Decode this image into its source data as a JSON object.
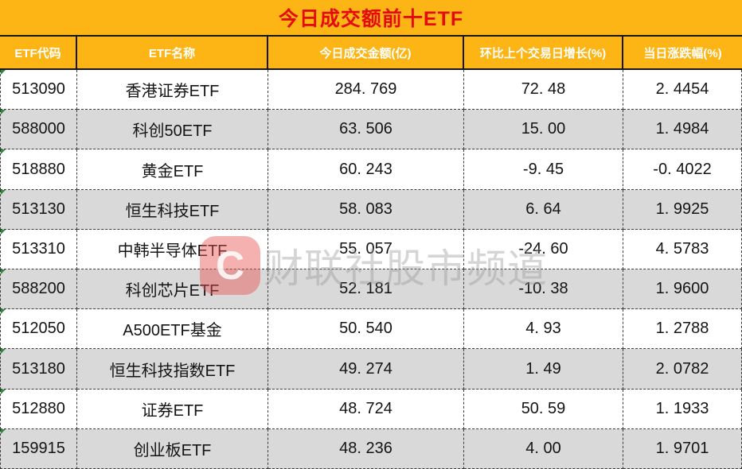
{
  "title": "今日成交额前十ETF",
  "table": {
    "headers": [
      "ETF代码",
      "ETF名称",
      "今日成交金额(亿)",
      "环比上个交易日增长(%)",
      "当日涨跌幅(%)"
    ],
    "rows": [
      {
        "code": "513090",
        "name": "香港证券ETF",
        "turnover": "284. 769",
        "change_vs_prev": "72. 48",
        "daily_change": "2. 4454"
      },
      {
        "code": "588000",
        "name": "科创50ETF",
        "turnover": "63. 506",
        "change_vs_prev": "15. 00",
        "daily_change": "1. 4984"
      },
      {
        "code": "518880",
        "name": "黄金ETF",
        "turnover": "60. 243",
        "change_vs_prev": "-9. 45",
        "daily_change": "-0. 4022"
      },
      {
        "code": "513130",
        "name": "恒生科技ETF",
        "turnover": "58. 083",
        "change_vs_prev": "6. 64",
        "daily_change": "1. 9925"
      },
      {
        "code": "513310",
        "name": "中韩半导体ETF",
        "turnover": "55. 057",
        "change_vs_prev": "-24. 60",
        "daily_change": "4. 5783"
      },
      {
        "code": "588200",
        "name": "科创芯片ETF",
        "turnover": "52. 181",
        "change_vs_prev": "-10. 38",
        "daily_change": "1. 9600"
      },
      {
        "code": "512050",
        "name": "A500ETF基金",
        "turnover": "50. 540",
        "change_vs_prev": "4. 93",
        "daily_change": "1. 2788"
      },
      {
        "code": "513180",
        "name": "恒生科技指数ETF",
        "turnover": "49. 274",
        "change_vs_prev": "1. 49",
        "daily_change": "2. 0782"
      },
      {
        "code": "512880",
        "name": "证券ETF",
        "turnover": "48. 724",
        "change_vs_prev": "50. 59",
        "daily_change": "1. 1933"
      },
      {
        "code": "159915",
        "name": "创业板ETF",
        "turnover": "48. 236",
        "change_vs_prev": "4. 00",
        "daily_change": "1. 9701"
      }
    ]
  },
  "chart_data": {
    "type": "table",
    "title": "今日成交额前十ETF",
    "columns": [
      "ETF代码",
      "ETF名称",
      "今日成交金额(亿)",
      "环比上个交易日增长(%)",
      "当日涨跌幅(%)"
    ],
    "rows": [
      [
        "513090",
        "香港证券ETF",
        284.769,
        72.48,
        2.4454
      ],
      [
        "588000",
        "科创50ETF",
        63.506,
        15.0,
        1.4984
      ],
      [
        "518880",
        "黄金ETF",
        60.243,
        -9.45,
        -0.4022
      ],
      [
        "513130",
        "恒生科技ETF",
        58.083,
        6.64,
        1.9925
      ],
      [
        "513310",
        "中韩半导体ETF",
        55.057,
        -24.6,
        4.5783
      ],
      [
        "588200",
        "科创芯片ETF",
        52.181,
        -10.38,
        1.96
      ],
      [
        "512050",
        "A500ETF基金",
        50.54,
        4.93,
        1.2788
      ],
      [
        "513180",
        "恒生科技指数ETF",
        49.274,
        1.49,
        2.0782
      ],
      [
        "512880",
        "证券ETF",
        48.724,
        50.59,
        1.1933
      ],
      [
        "159915",
        "创业板ETF",
        48.236,
        4.0,
        1.9701
      ]
    ]
  },
  "watermark": {
    "logo_letter": "C",
    "text": "财联社股市频道"
  },
  "colors": {
    "header_orange": "#fdb515",
    "title_red": "#e60b0b",
    "header_text_white": "#ffffff",
    "alt_row_gray": "#d9d9d9",
    "body_text": "#141414",
    "flag_green": "#2e8b3d"
  }
}
